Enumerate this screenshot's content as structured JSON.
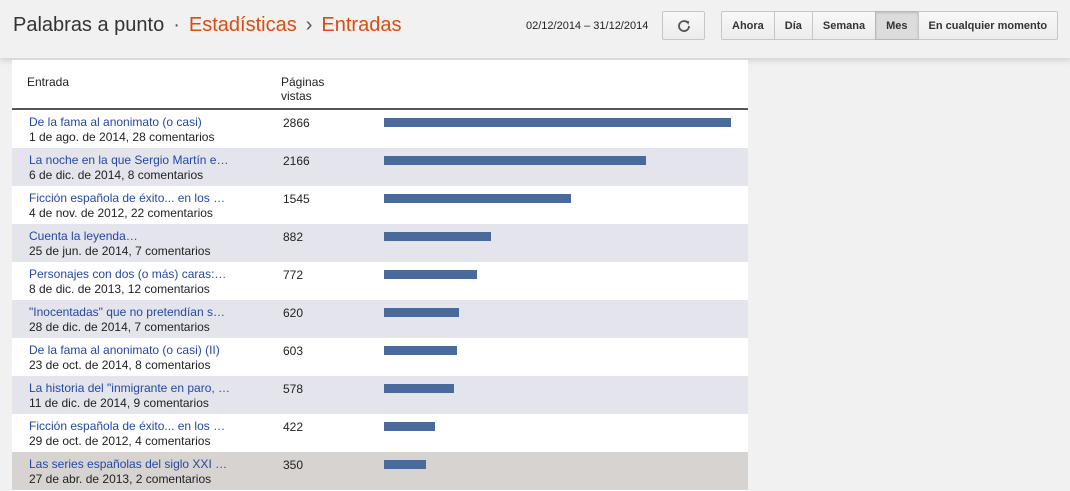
{
  "header": {
    "blog_name": "Palabras a punto",
    "separator_dot": "·",
    "section": "Estadísticas",
    "separator_arrow": "›",
    "subsection": "Entradas",
    "date_range": "02/12/2014 – 31/12/2014",
    "refresh_icon": "refresh-icon",
    "periods": [
      {
        "label": "Ahora",
        "active": false
      },
      {
        "label": "Día",
        "active": false
      },
      {
        "label": "Semana",
        "active": false
      },
      {
        "label": "Mes",
        "active": true
      },
      {
        "label": "En cualquier momento",
        "active": false
      }
    ]
  },
  "table": {
    "col_entry": "Entrada",
    "col_views": "Páginas vistas",
    "bar_color": "#4a6a9c",
    "rows": [
      {
        "title": "De la fama al anonimato (o casi)",
        "meta": "1 de ago. de 2014, 28 comentarios",
        "views": 2866
      },
      {
        "title": "La noche en la que Sergio Martín e…",
        "meta": "6 de dic. de 2014, 8 comentarios",
        "views": 2166
      },
      {
        "title": "Ficción española de éxito... en los …",
        "meta": "4 de nov. de 2012, 22 comentarios",
        "views": 1545
      },
      {
        "title": "Cuenta la leyenda…",
        "meta": "25 de jun. de 2014, 7 comentarios",
        "views": 882
      },
      {
        "title": "Personajes con dos (o más) caras:…",
        "meta": "8 de dic. de 2013, 12 comentarios",
        "views": 772
      },
      {
        "title": "\"Inocentadas\" que no pretendían s…",
        "meta": "28 de dic. de 2014, 7 comentarios",
        "views": 620
      },
      {
        "title": "De la fama al anonimato (o casi) (II)",
        "meta": "23 de oct. de 2014, 8 comentarios",
        "views": 603
      },
      {
        "title": "La historia del \"inmigrante en paro, …",
        "meta": "11 de dic. de 2014, 9 comentarios",
        "views": 578
      },
      {
        "title": "Ficción española de éxito... en los …",
        "meta": "29 de oct. de 2012, 4 comentarios",
        "views": 422
      },
      {
        "title": "Las series españolas del siglo XXI …",
        "meta": "27 de abr. de 2013, 2 comentarios",
        "views": 350
      }
    ]
  }
}
